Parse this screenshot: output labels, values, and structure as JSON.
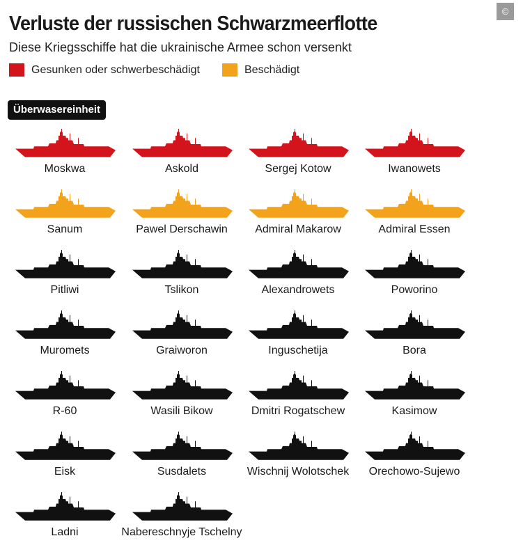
{
  "title": "Verluste der russischen Schwarzmeerflotte",
  "subtitle": "Diese Kriegsschiffe hat die ukrainische Armee schon versenkt",
  "copyright_symbol": "©",
  "colors": {
    "sunk": "#d4141c",
    "damaged": "#f3a31b",
    "other": "#111111"
  },
  "legend": [
    {
      "label": "Gesunken oder schwerbeschädigt",
      "status": "sunk"
    },
    {
      "label": "Beschädigt",
      "status": "damaged"
    }
  ],
  "section_label": "Überwasereinheit",
  "ships": [
    {
      "name": "Moskwa",
      "status": "sunk"
    },
    {
      "name": "Askold",
      "status": "sunk"
    },
    {
      "name": "Sergej Kotow",
      "status": "sunk"
    },
    {
      "name": "Iwanowets",
      "status": "sunk"
    },
    {
      "name": "Sanum",
      "status": "damaged"
    },
    {
      "name": "Pawel Derschawin",
      "status": "damaged"
    },
    {
      "name": "Admiral Makarow",
      "status": "damaged"
    },
    {
      "name": "Admiral Essen",
      "status": "damaged"
    },
    {
      "name": "Pitliwi",
      "status": "other"
    },
    {
      "name": "Tslikon",
      "status": "other"
    },
    {
      "name": "Alexandrowets",
      "status": "other"
    },
    {
      "name": "Poworino",
      "status": "other"
    },
    {
      "name": "Muromets",
      "status": "other"
    },
    {
      "name": "Graiworon",
      "status": "other"
    },
    {
      "name": "Inguschetija",
      "status": "other"
    },
    {
      "name": "Bora",
      "status": "other"
    },
    {
      "name": "R-60",
      "status": "other"
    },
    {
      "name": "Wasili Bikow",
      "status": "other"
    },
    {
      "name": "Dmitri Rogatschew",
      "status": "other"
    },
    {
      "name": "Kasimow",
      "status": "other"
    },
    {
      "name": "Eisk",
      "status": "other"
    },
    {
      "name": "Susdalets",
      "status": "other"
    },
    {
      "name": "Wischnij Wolotschek",
      "status": "other"
    },
    {
      "name": "Orechowo-Sujewo",
      "status": "other"
    },
    {
      "name": "Ladni",
      "status": "other"
    },
    {
      "name": "Nabereschnyje Tschelny",
      "status": "other"
    }
  ]
}
